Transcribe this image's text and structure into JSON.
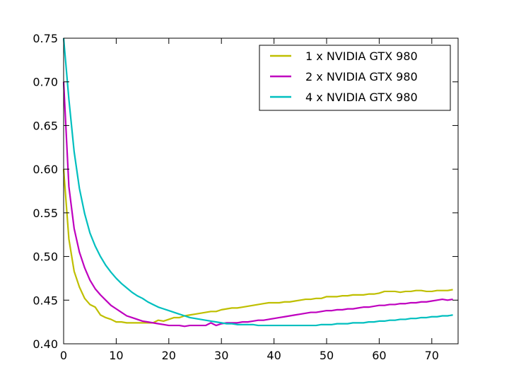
{
  "chart_data": {
    "type": "line",
    "title": "",
    "xlabel": "",
    "ylabel": "",
    "xlim": [
      0,
      75
    ],
    "ylim": [
      0.4,
      0.75
    ],
    "x_ticks": [
      "0",
      "10",
      "20",
      "30",
      "40",
      "50",
      "60",
      "70"
    ],
    "y_ticks": [
      "0.40",
      "0.45",
      "0.50",
      "0.55",
      "0.60",
      "0.65",
      "0.70",
      "0.75"
    ],
    "grid": false,
    "legend_position": "top-right",
    "series": [
      {
        "name": "1 x NVIDIA GTX 980",
        "color": "#bfbf00",
        "x": [
          0,
          1,
          2,
          3,
          4,
          5,
          6,
          7,
          8,
          9,
          10,
          11,
          12,
          13,
          14,
          15,
          16,
          17,
          18,
          19,
          20,
          21,
          22,
          23,
          24,
          25,
          26,
          27,
          28,
          29,
          30,
          31,
          32,
          33,
          34,
          35,
          36,
          37,
          38,
          39,
          40,
          41,
          42,
          43,
          44,
          45,
          46,
          47,
          48,
          49,
          50,
          51,
          52,
          53,
          54,
          55,
          56,
          57,
          58,
          59,
          60,
          61,
          62,
          63,
          64,
          65,
          66,
          67,
          68,
          69,
          70,
          71,
          72,
          73,
          74
        ],
        "values": [
          0.6,
          0.52,
          0.483,
          0.465,
          0.452,
          0.445,
          0.442,
          0.433,
          0.43,
          0.428,
          0.425,
          0.425,
          0.424,
          0.424,
          0.424,
          0.424,
          0.424,
          0.424,
          0.427,
          0.426,
          0.428,
          0.43,
          0.43,
          0.432,
          0.433,
          0.434,
          0.435,
          0.436,
          0.437,
          0.437,
          0.439,
          0.44,
          0.441,
          0.441,
          0.442,
          0.443,
          0.444,
          0.445,
          0.446,
          0.447,
          0.447,
          0.447,
          0.448,
          0.448,
          0.449,
          0.45,
          0.451,
          0.451,
          0.452,
          0.452,
          0.454,
          0.454,
          0.454,
          0.455,
          0.455,
          0.456,
          0.456,
          0.456,
          0.457,
          0.457,
          0.458,
          0.46,
          0.46,
          0.46,
          0.459,
          0.46,
          0.46,
          0.461,
          0.461,
          0.46,
          0.46,
          0.461,
          0.461,
          0.461,
          0.462
        ]
      },
      {
        "name": "2 x NVIDIA GTX 980",
        "color": "#bf00bf",
        "x": [
          0,
          1,
          2,
          3,
          4,
          5,
          6,
          7,
          8,
          9,
          10,
          11,
          12,
          13,
          14,
          15,
          16,
          17,
          18,
          19,
          20,
          21,
          22,
          23,
          24,
          25,
          26,
          27,
          28,
          29,
          30,
          31,
          32,
          33,
          34,
          35,
          36,
          37,
          38,
          39,
          40,
          41,
          42,
          43,
          44,
          45,
          46,
          47,
          48,
          49,
          50,
          51,
          52,
          53,
          54,
          55,
          56,
          57,
          58,
          59,
          60,
          61,
          62,
          63,
          64,
          65,
          66,
          67,
          68,
          69,
          70,
          71,
          72,
          73,
          74
        ],
        "values": [
          0.7,
          0.58,
          0.532,
          0.505,
          0.487,
          0.473,
          0.463,
          0.456,
          0.45,
          0.444,
          0.44,
          0.436,
          0.432,
          0.43,
          0.428,
          0.426,
          0.425,
          0.424,
          0.423,
          0.422,
          0.421,
          0.421,
          0.421,
          0.42,
          0.421,
          0.421,
          0.421,
          0.421,
          0.424,
          0.421,
          0.423,
          0.424,
          0.424,
          0.424,
          0.425,
          0.425,
          0.426,
          0.427,
          0.427,
          0.428,
          0.429,
          0.43,
          0.431,
          0.432,
          0.433,
          0.434,
          0.435,
          0.436,
          0.436,
          0.437,
          0.438,
          0.438,
          0.439,
          0.439,
          0.44,
          0.44,
          0.441,
          0.442,
          0.442,
          0.443,
          0.444,
          0.444,
          0.445,
          0.445,
          0.446,
          0.446,
          0.447,
          0.447,
          0.448,
          0.448,
          0.449,
          0.45,
          0.451,
          0.45,
          0.451
        ]
      },
      {
        "name": "4 x NVIDIA GTX 980",
        "color": "#00bfbf",
        "x": [
          0,
          1,
          2,
          3,
          4,
          5,
          6,
          7,
          8,
          9,
          10,
          11,
          12,
          13,
          14,
          15,
          16,
          17,
          18,
          19,
          20,
          21,
          22,
          23,
          24,
          25,
          26,
          27,
          28,
          29,
          30,
          31,
          32,
          33,
          34,
          35,
          36,
          37,
          38,
          39,
          40,
          41,
          42,
          43,
          44,
          45,
          46,
          47,
          48,
          49,
          50,
          51,
          52,
          53,
          54,
          55,
          56,
          57,
          58,
          59,
          60,
          61,
          62,
          63,
          64,
          65,
          66,
          67,
          68,
          69,
          70,
          71,
          72,
          73,
          74
        ],
        "values": [
          0.75,
          0.68,
          0.62,
          0.578,
          0.549,
          0.527,
          0.512,
          0.5,
          0.49,
          0.482,
          0.475,
          0.469,
          0.464,
          0.459,
          0.455,
          0.452,
          0.448,
          0.445,
          0.442,
          0.44,
          0.438,
          0.436,
          0.434,
          0.432,
          0.43,
          0.429,
          0.428,
          0.427,
          0.426,
          0.425,
          0.424,
          0.423,
          0.423,
          0.422,
          0.422,
          0.422,
          0.422,
          0.421,
          0.421,
          0.421,
          0.421,
          0.421,
          0.421,
          0.421,
          0.421,
          0.421,
          0.421,
          0.421,
          0.421,
          0.422,
          0.422,
          0.422,
          0.423,
          0.423,
          0.423,
          0.424,
          0.424,
          0.424,
          0.425,
          0.425,
          0.426,
          0.426,
          0.427,
          0.427,
          0.428,
          0.428,
          0.429,
          0.429,
          0.43,
          0.43,
          0.431,
          0.431,
          0.432,
          0.432,
          0.433
        ]
      }
    ]
  }
}
